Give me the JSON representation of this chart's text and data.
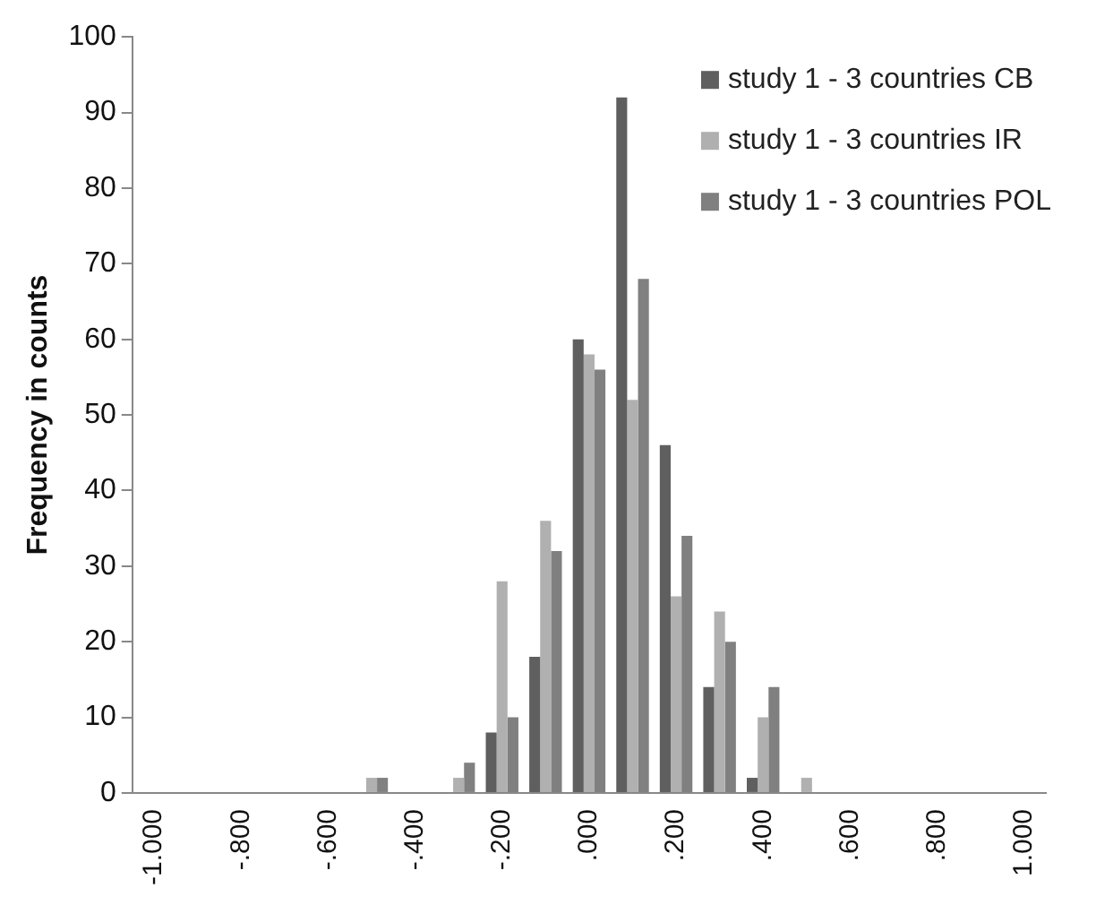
{
  "chart_data": {
    "type": "bar",
    "ylabel": "Frequency in counts",
    "categories": [
      "-1.000",
      null,
      "-.800",
      null,
      "-.600",
      null,
      "-.400",
      null,
      "-.200",
      null,
      ".000",
      null,
      ".200",
      null,
      ".400",
      null,
      ".600",
      null,
      ".800",
      null,
      "1.000"
    ],
    "series": [
      {
        "name": "study 1 - 3 countries CB",
        "color": "#5f5f5f",
        "values": [
          0,
          0,
          0,
          0,
          0,
          0,
          0,
          0,
          8,
          18,
          60,
          92,
          46,
          14,
          2,
          0,
          0,
          0,
          0,
          0,
          0
        ]
      },
      {
        "name": "study 1 - 3 countries IR",
        "color": "#b0b0b0",
        "values": [
          0,
          0,
          0,
          0,
          0,
          2,
          0,
          2,
          28,
          36,
          58,
          52,
          26,
          24,
          10,
          2,
          0,
          0,
          0,
          0,
          0
        ]
      },
      {
        "name": "study 1 - 3 countries POL",
        "color": "#808080",
        "values": [
          0,
          0,
          0,
          0,
          0,
          2,
          0,
          4,
          10,
          32,
          56,
          68,
          34,
          20,
          14,
          0,
          0,
          0,
          0,
          0,
          0
        ]
      }
    ],
    "ylim": [
      0,
      100
    ],
    "yticks": [
      0,
      10,
      20,
      30,
      40,
      50,
      60,
      70,
      80,
      90,
      100
    ],
    "grid": false,
    "legend": "top right"
  }
}
